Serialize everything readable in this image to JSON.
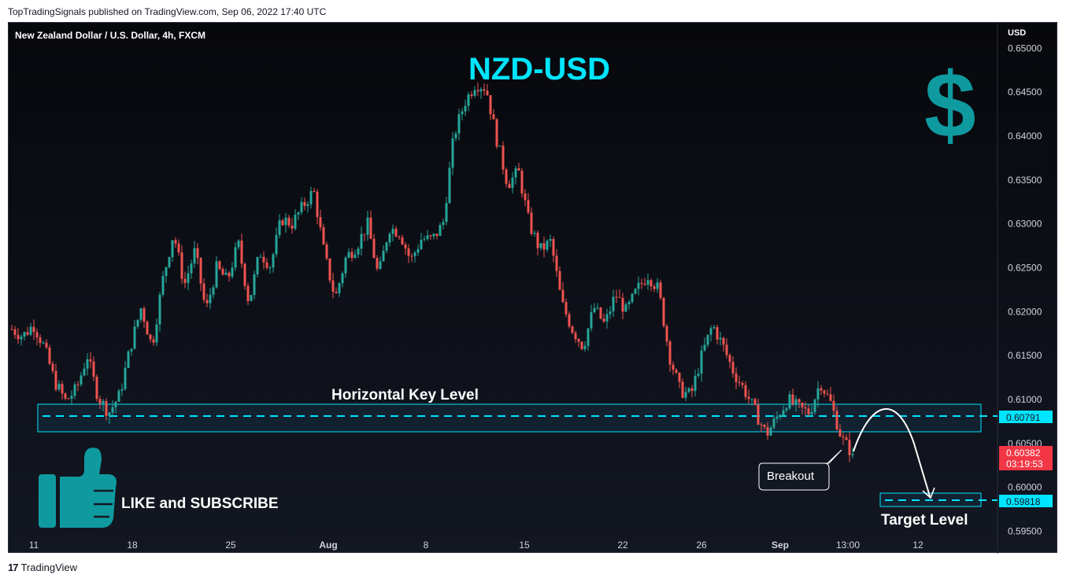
{
  "header": {
    "publisher_line": "TopTradingSignals published on TradingView.com, Sep 06, 2022 17:40 UTC"
  },
  "chart": {
    "symbol_title": "New Zealand Dollar / U.S. Dollar, 4h, FXCM",
    "currency_label": "USD",
    "overlay_title": "NZD-USD",
    "dollar_glyph": "$",
    "key_level_label": "Horizontal Key Level",
    "breakout_label": "Breakout",
    "target_label": "Target Level",
    "like_subscribe": "LIKE and SUBSCRIBE",
    "price_axis": [
      "0.65000",
      "0.64500",
      "0.64000",
      "0.63500",
      "0.63000",
      "0.62500",
      "0.62000",
      "0.61500",
      "0.61000",
      "0.60500",
      "0.60000",
      "0.59500"
    ],
    "time_axis": [
      "11",
      "18",
      "25",
      "Aug",
      "8",
      "15",
      "22",
      "26",
      "Sep",
      "13:00",
      "12"
    ],
    "key_level_value": "0.60791",
    "current_price": "0.60382",
    "countdown": "03:19:53",
    "target_value": "0.59818",
    "colors": {
      "up": "#26a69a",
      "down": "#ef5350",
      "accent": "#00e5ff",
      "thumb": "#0f9aa0",
      "price_tag": "#f23645"
    }
  },
  "chart_data": {
    "type": "candlestick",
    "title": "New Zealand Dollar / U.S. Dollar, 4h, FXCM",
    "ylabel": "USD",
    "ylim": [
      0.5945,
      0.652
    ],
    "path_closes": [
      0.618,
      0.6172,
      0.6185,
      0.616,
      0.612,
      0.6098,
      0.6112,
      0.615,
      0.6103,
      0.6085,
      0.6105,
      0.616,
      0.6205,
      0.616,
      0.6236,
      0.629,
      0.623,
      0.627,
      0.62,
      0.625,
      0.6235,
      0.6278,
      0.621,
      0.6268,
      0.6252,
      0.6306,
      0.63,
      0.632,
      0.6338,
      0.6265,
      0.6215,
      0.6262,
      0.6275,
      0.63,
      0.624,
      0.6296,
      0.629,
      0.6258,
      0.6283,
      0.6282,
      0.63,
      0.64,
      0.6438,
      0.646,
      0.6455,
      0.6395,
      0.6345,
      0.636,
      0.63,
      0.627,
      0.628,
      0.621,
      0.618,
      0.616,
      0.6205,
      0.6185,
      0.622,
      0.62,
      0.6225,
      0.6242,
      0.6225,
      0.615,
      0.611,
      0.6105,
      0.615,
      0.6185,
      0.616,
      0.613,
      0.611,
      0.6085,
      0.606,
      0.608,
      0.61,
      0.609,
      0.6085,
      0.612,
      0.6095,
      0.6055,
      0.6038
    ],
    "key_level": 0.60791,
    "key_zone": [
      0.6062,
      0.6094
    ],
    "current_price": 0.60382,
    "target_level": 0.59818,
    "annotations": [
      "NZD-USD",
      "Horizontal Key Level",
      "Breakout",
      "Target Level",
      "LIKE and SUBSCRIBE"
    ]
  }
}
